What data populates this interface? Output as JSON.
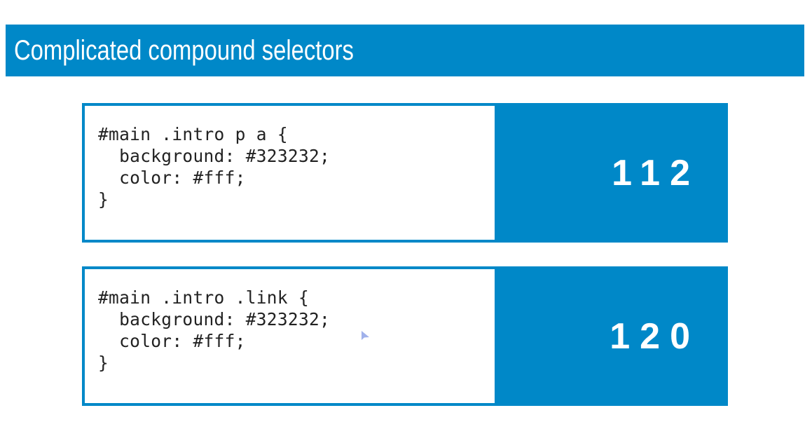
{
  "title": "Complicated compound selectors",
  "accent_color": "#0088c8",
  "examples": [
    {
      "code": {
        "line1": "#main .intro p a {",
        "line2": "  background: #323232;",
        "line3": "  color: #fff;",
        "line4": "}"
      },
      "specificity": "112"
    },
    {
      "code": {
        "line1": "#main .intro .link {",
        "line2": "  background: #323232;",
        "line3": "  color: #fff;",
        "line4": "}"
      },
      "specificity": "120"
    }
  ],
  "cursor_icon": "pointer-cursor-icon"
}
